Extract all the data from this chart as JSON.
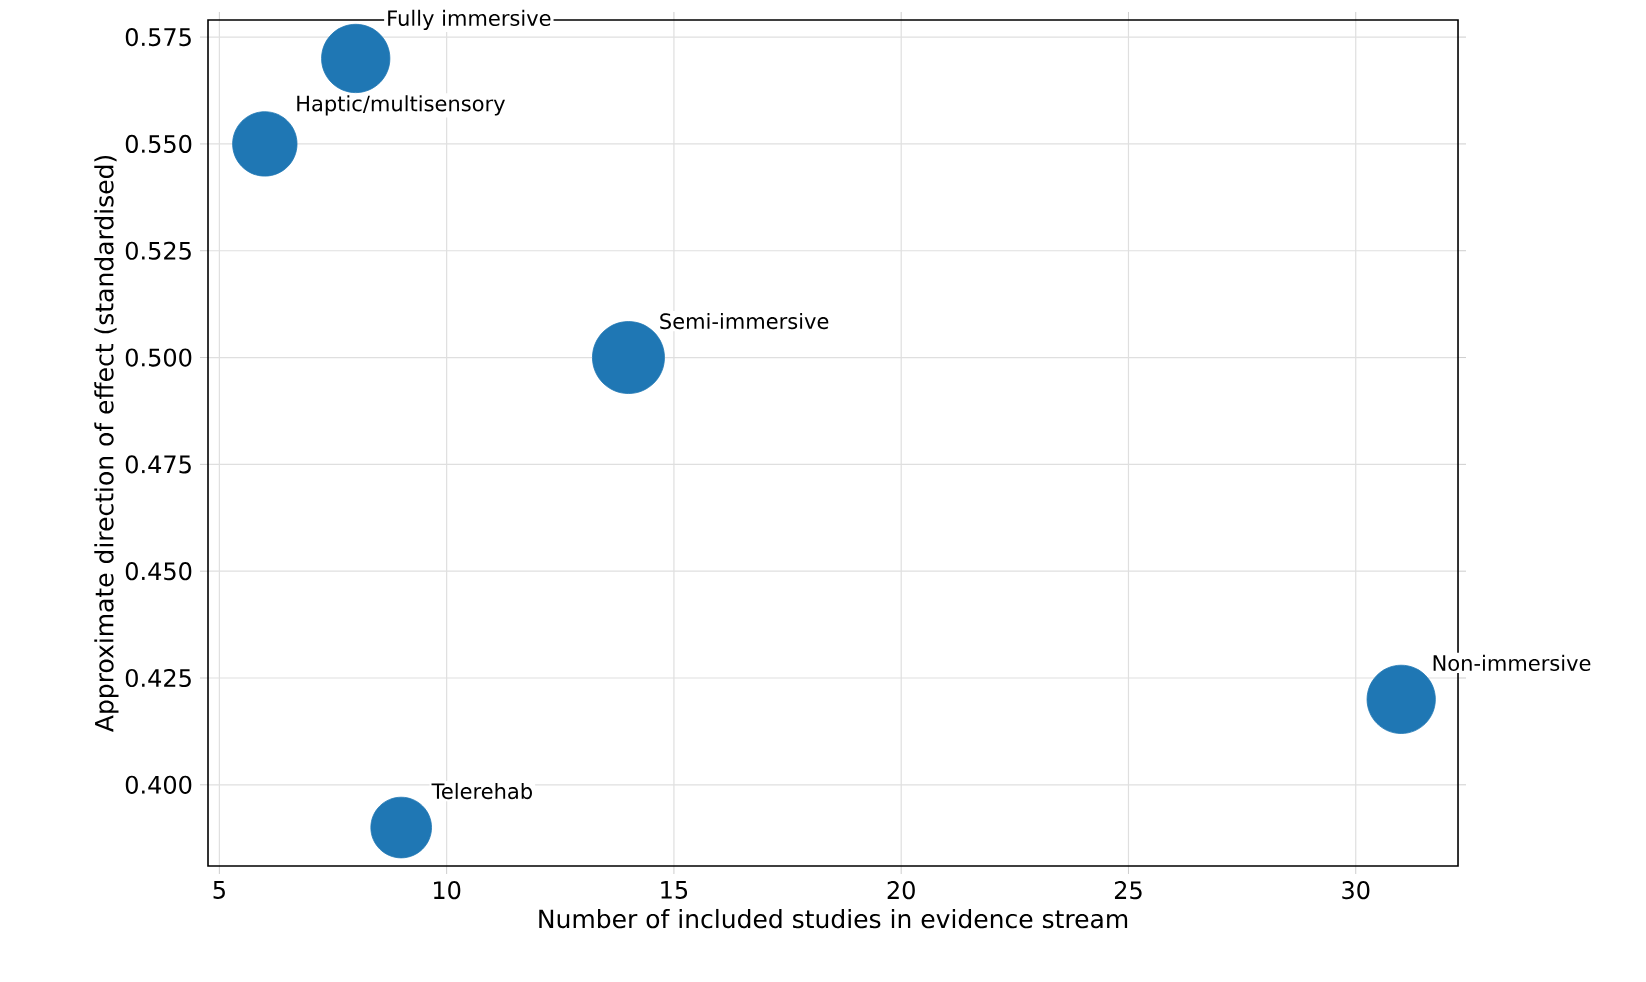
{
  "chart_data": {
    "type": "bubble",
    "xlabel": "Number of included studies in evidence stream",
    "ylabel": "Approximate direction of effect (standardised)",
    "x": [
      8,
      6,
      14,
      31,
      9
    ],
    "values": [
      0.57,
      0.55,
      0.5,
      0.42,
      0.39
    ],
    "sizes": [
      0.9,
      0.8,
      1,
      0.9,
      0.71
    ],
    "color": "#1f77b4",
    "grid": true,
    "xlim": [
      4.75,
      32.25
    ],
    "xticks": [
      5,
      10,
      15,
      20,
      25,
      30
    ],
    "ylim": [
      0.381,
      0.579
    ],
    "yticks": [
      {
        "value": 0.4,
        "label": "0.400"
      },
      {
        "value": 0.425,
        "label": "0.425"
      },
      {
        "value": 0.45,
        "label": "0.450"
      },
      {
        "value": 0.475,
        "label": "0.475"
      },
      {
        "value": 0.5,
        "label": "0.500"
      },
      {
        "value": 0.525,
        "label": "0.525"
      },
      {
        "value": 0.55,
        "label": "0.550"
      },
      {
        "value": 0.575,
        "label": "0.575"
      }
    ],
    "annotations": [
      {
        "text": "Fully immersive",
        "x": 8,
        "y": 0.57
      },
      {
        "text": "Haptic/multisensory",
        "x": 6,
        "y": 0.55
      },
      {
        "text": "Semi-immersive",
        "x": 14,
        "y": 0.5
      },
      {
        "text": "Non-immersive",
        "x": 31,
        "y": 0.42
      },
      {
        "text": "Telerehab",
        "x": 9,
        "y": 0.39
      }
    ]
  }
}
